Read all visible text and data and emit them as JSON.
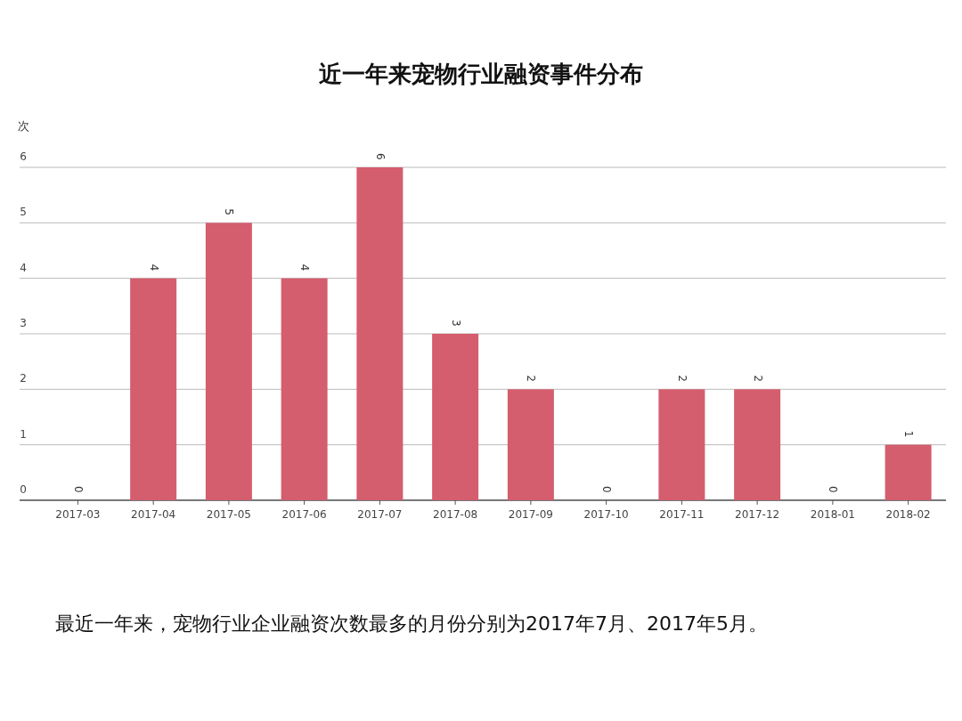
{
  "chart_data": {
    "type": "bar",
    "title": "近一年来宠物行业融资事件分布",
    "ylabel": "次",
    "categories": [
      "2017-03",
      "2017-04",
      "2017-05",
      "2017-06",
      "2017-07",
      "2017-08",
      "2017-09",
      "2017-10",
      "2017-11",
      "2017-12",
      "2018-01",
      "2018-02"
    ],
    "values": [
      0,
      4,
      5,
      4,
      6,
      3,
      2,
      0,
      2,
      2,
      0,
      1
    ],
    "color": "#d45d6e",
    "ylim": [
      0,
      6
    ],
    "yticks": [
      0,
      1,
      2,
      3,
      4,
      5,
      6
    ],
    "grid": "y",
    "data_labels": true,
    "annotations": [
      "最近一年来，宠物行业企业融资次数最多的月份分别为2017年7月、2017年5月。"
    ]
  }
}
